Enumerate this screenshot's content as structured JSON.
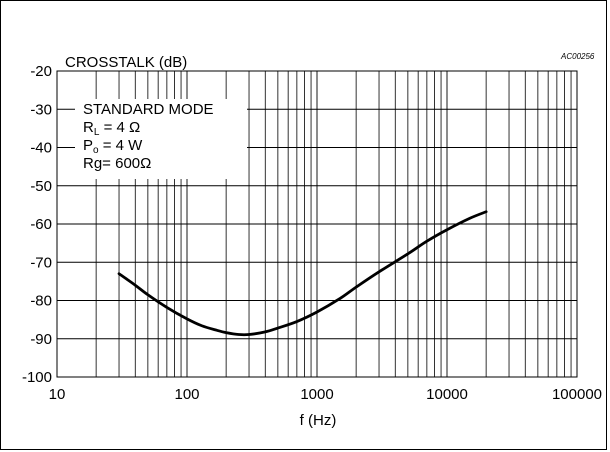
{
  "chart_data": {
    "type": "line",
    "title": "CROSSTALK (dB)",
    "code": "AC00256",
    "xlabel": "f (Hz)",
    "x_scale": "log",
    "xlim": [
      10,
      100000
    ],
    "ylim": [
      -100,
      -20
    ],
    "x_ticks": [
      10,
      100,
      1000,
      10000,
      100000
    ],
    "x_tick_labels": [
      "10",
      "100",
      "1000",
      "10000",
      "100000"
    ],
    "y_ticks": [
      -20,
      -30,
      -40,
      -50,
      -60,
      -70,
      -80,
      -90,
      -100
    ],
    "y_tick_labels": [
      "-20",
      "-30",
      "-40",
      "-50",
      "-60",
      "-70",
      "-80",
      "-90",
      "-100"
    ],
    "grid": true,
    "legend": {
      "mode": "STANDARD MODE",
      "rl": {
        "main": "R",
        "sub": "L",
        "rest": " = 4 Ω"
      },
      "po": {
        "main": "P",
        "sub": "o",
        "rest": " = 4 W"
      },
      "rg": "Rg= 600Ω"
    },
    "series": [
      {
        "color": "#000000",
        "points": [
          {
            "x": 30,
            "y": -73
          },
          {
            "x": 40,
            "y": -76
          },
          {
            "x": 50,
            "y": -78.5
          },
          {
            "x": 70,
            "y": -81.8
          },
          {
            "x": 100,
            "y": -84.8
          },
          {
            "x": 130,
            "y": -86.6
          },
          {
            "x": 170,
            "y": -87.8
          },
          {
            "x": 200,
            "y": -88.4
          },
          {
            "x": 250,
            "y": -88.9
          },
          {
            "x": 300,
            "y": -88.9
          },
          {
            "x": 400,
            "y": -88.2
          },
          {
            "x": 500,
            "y": -87.2
          },
          {
            "x": 700,
            "y": -85.5
          },
          {
            "x": 1000,
            "y": -83
          },
          {
            "x": 1500,
            "y": -79.5
          },
          {
            "x": 2000,
            "y": -76.5
          },
          {
            "x": 3000,
            "y": -72.5
          },
          {
            "x": 5000,
            "y": -67.8
          },
          {
            "x": 7000,
            "y": -64.5
          },
          {
            "x": 10000,
            "y": -61.5
          },
          {
            "x": 15000,
            "y": -58.5
          },
          {
            "x": 20000,
            "y": -56.8
          }
        ]
      }
    ]
  }
}
